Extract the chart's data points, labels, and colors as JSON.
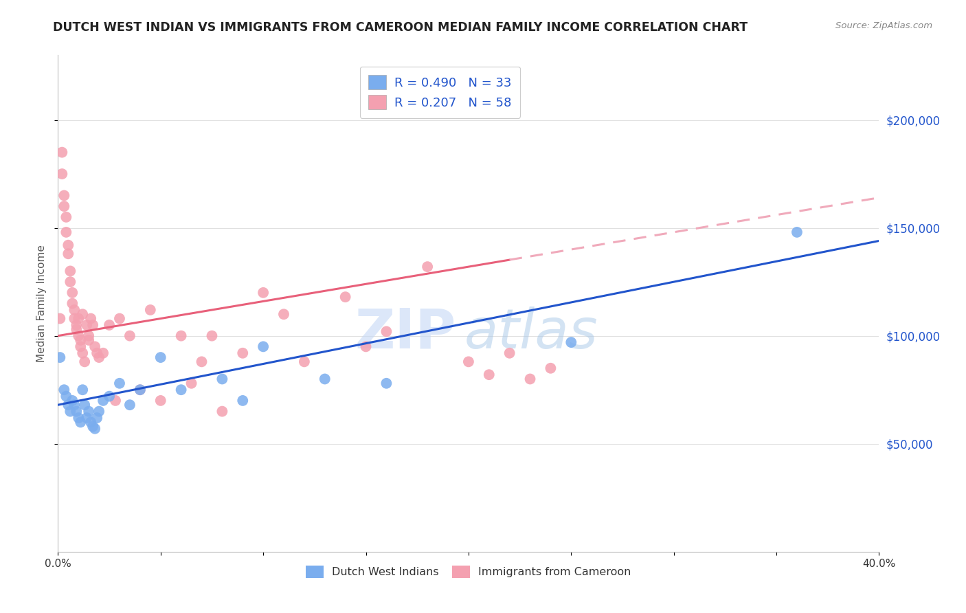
{
  "title": "DUTCH WEST INDIAN VS IMMIGRANTS FROM CAMEROON MEDIAN FAMILY INCOME CORRELATION CHART",
  "source": "Source: ZipAtlas.com",
  "ylabel": "Median Family Income",
  "xlim": [
    0.0,
    0.4
  ],
  "ylim": [
    0,
    230000
  ],
  "yticks": [
    50000,
    100000,
    150000,
    200000
  ],
  "ytick_labels": [
    "$50,000",
    "$100,000",
    "$150,000",
    "$200,000"
  ],
  "xticks": [
    0.0,
    0.05,
    0.1,
    0.15,
    0.2,
    0.25,
    0.3,
    0.35,
    0.4
  ],
  "xtick_labels": [
    "0.0%",
    "",
    "",
    "",
    "",
    "",
    "",
    "",
    "40.0%"
  ],
  "blue_color": "#7aadee",
  "pink_color": "#f4a0b0",
  "blue_line_color": "#2255cc",
  "pink_line_color": "#e8607a",
  "pink_dashed_color": "#f0aabb",
  "R_blue": 0.49,
  "N_blue": 33,
  "R_pink": 0.207,
  "N_pink": 58,
  "label_blue": "Dutch West Indians",
  "label_pink": "Immigrants from Cameroon",
  "blue_points_x": [
    0.001,
    0.003,
    0.004,
    0.005,
    0.006,
    0.007,
    0.008,
    0.009,
    0.01,
    0.011,
    0.012,
    0.013,
    0.014,
    0.015,
    0.016,
    0.017,
    0.018,
    0.019,
    0.02,
    0.022,
    0.025,
    0.03,
    0.035,
    0.04,
    0.05,
    0.06,
    0.08,
    0.09,
    0.1,
    0.13,
    0.16,
    0.25,
    0.36
  ],
  "blue_points_y": [
    90000,
    75000,
    72000,
    68000,
    65000,
    70000,
    68000,
    65000,
    62000,
    60000,
    75000,
    68000,
    62000,
    65000,
    60000,
    58000,
    57000,
    62000,
    65000,
    70000,
    72000,
    78000,
    68000,
    75000,
    90000,
    75000,
    80000,
    70000,
    95000,
    80000,
    78000,
    97000,
    148000
  ],
  "pink_points_x": [
    0.001,
    0.002,
    0.002,
    0.003,
    0.003,
    0.004,
    0.004,
    0.005,
    0.005,
    0.006,
    0.006,
    0.007,
    0.007,
    0.008,
    0.008,
    0.009,
    0.009,
    0.01,
    0.01,
    0.011,
    0.011,
    0.012,
    0.012,
    0.013,
    0.014,
    0.015,
    0.015,
    0.016,
    0.017,
    0.018,
    0.019,
    0.02,
    0.022,
    0.025,
    0.028,
    0.03,
    0.035,
    0.04,
    0.045,
    0.05,
    0.06,
    0.065,
    0.07,
    0.075,
    0.08,
    0.09,
    0.1,
    0.11,
    0.12,
    0.14,
    0.15,
    0.16,
    0.18,
    0.2,
    0.21,
    0.22,
    0.23,
    0.24
  ],
  "pink_points_y": [
    108000,
    185000,
    175000,
    165000,
    160000,
    155000,
    148000,
    142000,
    138000,
    130000,
    125000,
    120000,
    115000,
    112000,
    108000,
    105000,
    103000,
    108000,
    100000,
    98000,
    95000,
    110000,
    92000,
    88000,
    105000,
    100000,
    98000,
    108000,
    105000,
    95000,
    92000,
    90000,
    92000,
    105000,
    70000,
    108000,
    100000,
    75000,
    112000,
    70000,
    100000,
    78000,
    88000,
    100000,
    65000,
    92000,
    120000,
    110000,
    88000,
    118000,
    95000,
    102000,
    132000,
    88000,
    82000,
    92000,
    80000,
    85000
  ],
  "watermark_zip": "ZIP",
  "watermark_atlas": "atlas",
  "background_color": "#ffffff",
  "grid_color": "#e0e0e0",
  "pink_line_intercept": 100000,
  "pink_line_slope": 160000,
  "blue_line_intercept": 68000,
  "blue_line_slope": 190000
}
